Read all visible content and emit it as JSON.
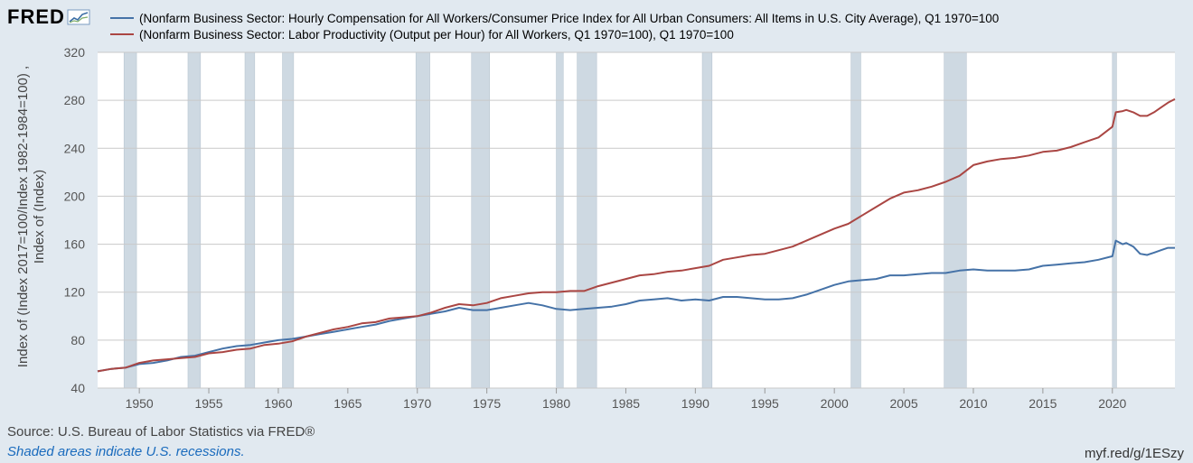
{
  "logo": {
    "text": "FRED"
  },
  "footer": {
    "source": "Source: U.S. Bureau of Labor Statistics via FRED®",
    "recession_note": "Shaded areas indicate U.S. recessions.",
    "short_url": "myf.red/g/1ESzy"
  },
  "colors": {
    "compensation": "#4572a7",
    "productivity": "#aa4643",
    "recession": "#ced9e2",
    "grid": "#c9c9c9",
    "plot_bg": "#ffffff"
  },
  "chart_data": {
    "type": "line",
    "title": "",
    "xlabel": "",
    "ylabel": "Index of (Index 2017=100/Index 1982-1984=100) , Index of (Index)",
    "xlim": [
      1947,
      2024.5
    ],
    "ylim": [
      40,
      320
    ],
    "yticks": [
      40,
      80,
      120,
      160,
      200,
      240,
      280,
      320
    ],
    "xticks": [
      1950,
      1955,
      1960,
      1965,
      1970,
      1975,
      1980,
      1985,
      1990,
      1995,
      2000,
      2005,
      2010,
      2015,
      2020
    ],
    "recessions": [
      [
        1948.9,
        1949.8
      ],
      [
        1953.5,
        1954.4
      ],
      [
        1957.6,
        1958.3
      ],
      [
        1960.3,
        1961.1
      ],
      [
        1969.9,
        1970.9
      ],
      [
        1973.9,
        1975.2
      ],
      [
        1980.0,
        1980.5
      ],
      [
        1981.5,
        1982.9
      ],
      [
        1990.5,
        1991.2
      ],
      [
        2001.2,
        2001.9
      ],
      [
        2007.9,
        2009.5
      ],
      [
        2020.0,
        2020.3
      ]
    ],
    "series": [
      {
        "name": "(Nonfarm Business Sector: Hourly Compensation for All Workers/Consumer Price Index for All Urban Consumers: All Items in U.S. City Average), Q1 1970=100",
        "color": "#4572a7",
        "points": [
          [
            1947,
            54
          ],
          [
            1948,
            56
          ],
          [
            1949,
            57
          ],
          [
            1950,
            60
          ],
          [
            1951,
            61
          ],
          [
            1952,
            63
          ],
          [
            1953,
            66
          ],
          [
            1954,
            67
          ],
          [
            1955,
            70
          ],
          [
            1956,
            73
          ],
          [
            1957,
            75
          ],
          [
            1958,
            76
          ],
          [
            1959,
            78
          ],
          [
            1960,
            80
          ],
          [
            1961,
            81
          ],
          [
            1962,
            83
          ],
          [
            1963,
            85
          ],
          [
            1964,
            87
          ],
          [
            1965,
            89
          ],
          [
            1966,
            91
          ],
          [
            1967,
            93
          ],
          [
            1968,
            96
          ],
          [
            1969,
            98
          ],
          [
            1970,
            100
          ],
          [
            1971,
            102
          ],
          [
            1972,
            104
          ],
          [
            1973,
            107
          ],
          [
            1974,
            105
          ],
          [
            1975,
            105
          ],
          [
            1976,
            107
          ],
          [
            1977,
            109
          ],
          [
            1978,
            111
          ],
          [
            1979,
            109
          ],
          [
            1980,
            106
          ],
          [
            1981,
            105
          ],
          [
            1982,
            106
          ],
          [
            1983,
            107
          ],
          [
            1984,
            108
          ],
          [
            1985,
            110
          ],
          [
            1986,
            113
          ],
          [
            1987,
            114
          ],
          [
            1988,
            115
          ],
          [
            1989,
            113
          ],
          [
            1990,
            114
          ],
          [
            1991,
            113
          ],
          [
            1992,
            116
          ],
          [
            1993,
            116
          ],
          [
            1994,
            115
          ],
          [
            1995,
            114
          ],
          [
            1996,
            114
          ],
          [
            1997,
            115
          ],
          [
            1998,
            118
          ],
          [
            1999,
            122
          ],
          [
            2000,
            126
          ],
          [
            2001,
            129
          ],
          [
            2002,
            130
          ],
          [
            2003,
            131
          ],
          [
            2004,
            134
          ],
          [
            2005,
            134
          ],
          [
            2006,
            135
          ],
          [
            2007,
            136
          ],
          [
            2008,
            136
          ],
          [
            2009,
            138
          ],
          [
            2010,
            139
          ],
          [
            2011,
            138
          ],
          [
            2012,
            138
          ],
          [
            2013,
            138
          ],
          [
            2014,
            139
          ],
          [
            2015,
            142
          ],
          [
            2016,
            143
          ],
          [
            2017,
            144
          ],
          [
            2018,
            145
          ],
          [
            2019,
            147
          ],
          [
            2020,
            150
          ],
          [
            2020.25,
            163
          ],
          [
            2020.75,
            160
          ],
          [
            2021,
            161
          ],
          [
            2021.5,
            158
          ],
          [
            2022,
            152
          ],
          [
            2022.5,
            151
          ],
          [
            2023,
            153
          ],
          [
            2023.5,
            155
          ],
          [
            2024,
            157
          ],
          [
            2024.5,
            157
          ]
        ]
      },
      {
        "name": "(Nonfarm Business Sector: Labor Productivity (Output per Hour) for All Workers, Q1 1970=100), Q1 1970=100",
        "color": "#aa4643",
        "points": [
          [
            1947,
            54
          ],
          [
            1948,
            56
          ],
          [
            1949,
            57
          ],
          [
            1950,
            61
          ],
          [
            1951,
            63
          ],
          [
            1952,
            64
          ],
          [
            1953,
            65
          ],
          [
            1954,
            66
          ],
          [
            1955,
            69
          ],
          [
            1956,
            70
          ],
          [
            1957,
            72
          ],
          [
            1958,
            73
          ],
          [
            1959,
            76
          ],
          [
            1960,
            77
          ],
          [
            1961,
            79
          ],
          [
            1962,
            83
          ],
          [
            1963,
            86
          ],
          [
            1964,
            89
          ],
          [
            1965,
            91
          ],
          [
            1966,
            94
          ],
          [
            1967,
            95
          ],
          [
            1968,
            98
          ],
          [
            1969,
            99
          ],
          [
            1970,
            100
          ],
          [
            1971,
            103
          ],
          [
            1972,
            107
          ],
          [
            1973,
            110
          ],
          [
            1974,
            109
          ],
          [
            1975,
            111
          ],
          [
            1976,
            115
          ],
          [
            1977,
            117
          ],
          [
            1978,
            119
          ],
          [
            1979,
            120
          ],
          [
            1980,
            120
          ],
          [
            1981,
            121
          ],
          [
            1982,
            121
          ],
          [
            1983,
            125
          ],
          [
            1984,
            128
          ],
          [
            1985,
            131
          ],
          [
            1986,
            134
          ],
          [
            1987,
            135
          ],
          [
            1988,
            137
          ],
          [
            1989,
            138
          ],
          [
            1990,
            140
          ],
          [
            1991,
            142
          ],
          [
            1992,
            147
          ],
          [
            1993,
            149
          ],
          [
            1994,
            151
          ],
          [
            1995,
            152
          ],
          [
            1996,
            155
          ],
          [
            1997,
            158
          ],
          [
            1998,
            163
          ],
          [
            1999,
            168
          ],
          [
            2000,
            173
          ],
          [
            2001,
            177
          ],
          [
            2002,
            184
          ],
          [
            2003,
            191
          ],
          [
            2004,
            198
          ],
          [
            2005,
            203
          ],
          [
            2006,
            205
          ],
          [
            2007,
            208
          ],
          [
            2008,
            212
          ],
          [
            2009,
            217
          ],
          [
            2010,
            226
          ],
          [
            2011,
            229
          ],
          [
            2012,
            231
          ],
          [
            2013,
            232
          ],
          [
            2014,
            234
          ],
          [
            2015,
            237
          ],
          [
            2016,
            238
          ],
          [
            2017,
            241
          ],
          [
            2018,
            245
          ],
          [
            2019,
            249
          ],
          [
            2020,
            258
          ],
          [
            2020.25,
            270
          ],
          [
            2020.75,
            271
          ],
          [
            2021,
            272
          ],
          [
            2021.5,
            270
          ],
          [
            2022,
            267
          ],
          [
            2022.5,
            267
          ],
          [
            2023,
            270
          ],
          [
            2023.5,
            274
          ],
          [
            2024,
            278
          ],
          [
            2024.5,
            281
          ]
        ]
      }
    ]
  }
}
